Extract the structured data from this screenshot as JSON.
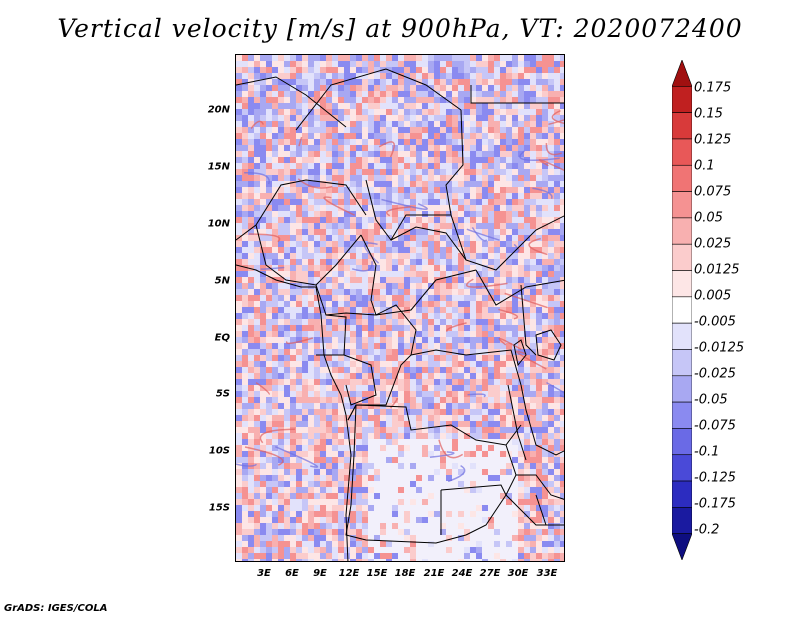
{
  "title": "Vertical velocity [m/s] at 900hPa, VT: 2020072400",
  "credit": "GrADS: IGES/COLA",
  "map": {
    "lon_range": [
      0,
      35
    ],
    "lat_range": [
      -20,
      25
    ],
    "lat_ticks": [
      {
        "lat": 20,
        "label": "20N"
      },
      {
        "lat": 15,
        "label": "15N"
      },
      {
        "lat": 10,
        "label": "10N"
      },
      {
        "lat": 5,
        "label": "5N"
      },
      {
        "lat": 0,
        "label": "EQ"
      },
      {
        "lat": -5,
        "label": "5S"
      },
      {
        "lat": -10,
        "label": "10S"
      },
      {
        "lat": -15,
        "label": "15S"
      }
    ],
    "lon_ticks": [
      {
        "lon": 3,
        "label": "3E"
      },
      {
        "lon": 6,
        "label": "6E"
      },
      {
        "lon": 9,
        "label": "9E"
      },
      {
        "lon": 12,
        "label": "12E"
      },
      {
        "lon": 15,
        "label": "15E"
      },
      {
        "lon": 18,
        "label": "18E"
      },
      {
        "lon": 21,
        "label": "21E"
      },
      {
        "lon": 24,
        "label": "24E"
      },
      {
        "lon": 27,
        "label": "27E"
      },
      {
        "lon": 30,
        "label": "30E"
      },
      {
        "lon": 33,
        "label": "33E"
      }
    ]
  },
  "colorbar": {
    "levels": [
      "0.175",
      "0.15",
      "0.125",
      "0.1",
      "0.075",
      "0.05",
      "0.025",
      "0.0125",
      "0.005",
      "-0.005",
      "-0.0125",
      "-0.025",
      "-0.05",
      "-0.075",
      "-0.1",
      "-0.125",
      "-0.175",
      "-0.2"
    ],
    "colors": [
      "#a01010",
      "#c02020",
      "#d83a3a",
      "#e85858",
      "#f07474",
      "#f59292",
      "#f8b0b0",
      "#fbcccc",
      "#fde6e6",
      "#ffffff",
      "#e2e2fb",
      "#c6c6f7",
      "#a8a8f2",
      "#8a8af0",
      "#6a6ae6",
      "#4a4ad8",
      "#2c2cc0",
      "#1a1aa0",
      "#0e0e80"
    ]
  }
}
